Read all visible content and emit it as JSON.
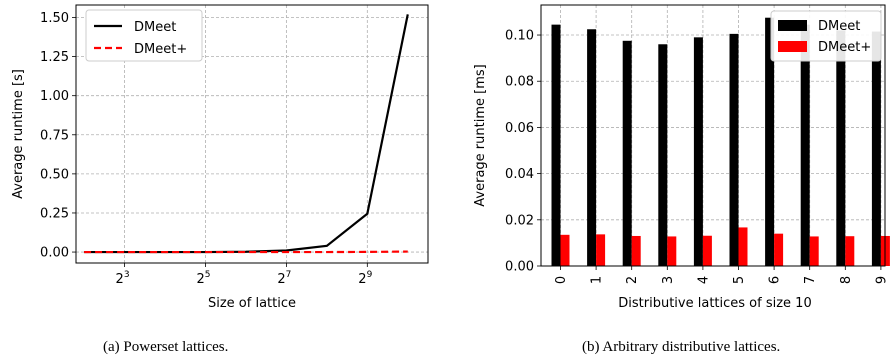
{
  "captions": {
    "left": "(a) Powerset lattices.",
    "right": "(b) Arbitrary distributive lattices."
  },
  "chart_data": [
    {
      "type": "line",
      "xlabel": "Size of lattice",
      "ylabel": "Average runtime [s]",
      "x_scale": "log2",
      "x": [
        4,
        8,
        16,
        32,
        64,
        128,
        256,
        512,
        1024
      ],
      "x_ticks": [
        {
          "value": 8,
          "base": "2",
          "exp": "3"
        },
        {
          "value": 32,
          "base": "2",
          "exp": "5"
        },
        {
          "value": 128,
          "base": "2",
          "exp": "7"
        },
        {
          "value": 512,
          "base": "2",
          "exp": "9"
        }
      ],
      "series": [
        {
          "name": "DMeet",
          "color": "#000000",
          "style": "solid",
          "values": [
            0.0,
            0.0,
            0.0,
            0.0,
            0.002,
            0.01,
            0.04,
            0.245,
            1.52
          ]
        },
        {
          "name": "DMeet+",
          "color": "#ff0000",
          "style": "dashed",
          "values": [
            0.0,
            0.0,
            0.0,
            0.0,
            0.0,
            0.0,
            0.0,
            0.001,
            0.003
          ]
        }
      ],
      "ylim": [
        -0.07,
        1.58
      ],
      "y_ticks": [
        "0.00",
        "0.25",
        "0.50",
        "0.75",
        "1.00",
        "1.25",
        "1.50"
      ],
      "grid": true,
      "legend_position": "top-left"
    },
    {
      "type": "bar",
      "xlabel": "Distributive lattices of size 10",
      "ylabel": "Average runtime [ms]",
      "categories": [
        "0",
        "1",
        "2",
        "3",
        "4",
        "5",
        "6",
        "7",
        "8",
        "9"
      ],
      "series": [
        {
          "name": "DMeet",
          "color": "#000000",
          "values": [
            0.1045,
            0.1025,
            0.0975,
            0.096,
            0.099,
            0.1005,
            0.1075,
            0.1045,
            0.102,
            0.1015
          ]
        },
        {
          "name": "DMeet+",
          "color": "#ff0000",
          "values": [
            0.0135,
            0.0137,
            0.013,
            0.0128,
            0.0131,
            0.0167,
            0.014,
            0.0128,
            0.0129,
            0.013
          ]
        }
      ],
      "ylim": [
        0,
        0.113
      ],
      "y_ticks": [
        "0.00",
        "0.02",
        "0.04",
        "0.06",
        "0.08",
        "0.10"
      ],
      "grid": true,
      "legend_position": "top-right"
    }
  ]
}
